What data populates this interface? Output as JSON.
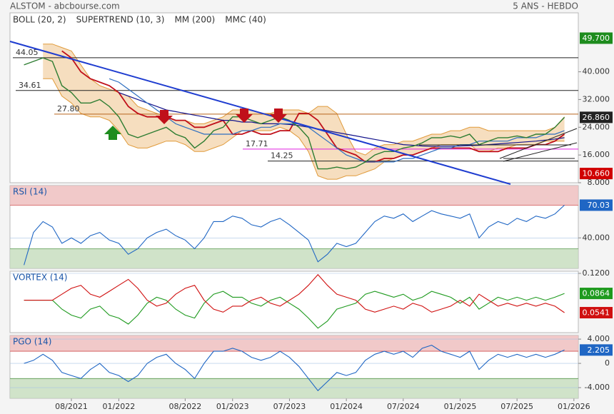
{
  "chart_data": [
    {
      "type": "line",
      "title": "ALSTOM - abcbourse.com",
      "subtitle": "5 ANS - HEBDO",
      "categories": [
        null,
        null,
        null,
        null,
        null,
        "08/2021",
        null,
        null,
        null,
        null,
        "01/2022",
        null,
        null,
        null,
        null,
        null,
        null,
        "08/2022",
        null,
        null,
        null,
        null,
        "01/2023",
        null,
        null,
        null,
        null,
        null,
        "07/2023",
        null,
        null,
        null,
        null,
        null,
        "01/2024",
        null,
        null,
        null,
        null,
        null,
        "07/2024",
        null,
        null,
        null,
        null,
        null,
        "01/2025",
        null,
        null,
        null,
        null,
        null,
        "07/2025",
        null,
        null,
        null,
        null,
        null,
        "01/2026"
      ],
      "price": {
        "color": "#2e7d32",
        "values": [
          42,
          43,
          44,
          43,
          36,
          34,
          31,
          31,
          32,
          30,
          27,
          22,
          21,
          22,
          23,
          24,
          22,
          21,
          18,
          20,
          23,
          24,
          27,
          27,
          26,
          25,
          26,
          27,
          26,
          24,
          21,
          12,
          12,
          12.5,
          12,
          12.5,
          14,
          16,
          17,
          17,
          18,
          18.5,
          19.5,
          21,
          21,
          21.5,
          21,
          22,
          19,
          20,
          21,
          21,
          21.5,
          21,
          22,
          22,
          24,
          26.86,
          null
        ]
      },
      "overlays": [
        {
          "name": "BOLL (20, 2)",
          "color": "#e09a3a",
          "fill": "#f3d3aa",
          "upper": [
            null,
            null,
            48,
            48,
            47,
            46,
            42,
            38,
            36,
            35,
            34,
            33,
            30,
            29,
            28,
            27,
            26,
            26,
            25,
            25,
            26,
            27,
            29,
            29,
            29,
            28,
            28,
            29,
            29,
            29,
            28,
            30,
            30,
            28,
            22,
            17,
            16,
            18,
            19,
            19,
            20,
            20,
            21,
            22,
            22,
            23,
            23,
            24,
            24,
            23,
            23,
            23,
            23,
            23,
            23,
            23,
            24,
            27,
            null
          ],
          "lower": [
            null,
            null,
            38,
            38,
            33,
            31,
            28,
            27,
            27,
            26,
            23,
            19,
            18,
            18,
            19,
            20,
            20,
            19,
            17,
            17,
            18,
            19,
            21,
            23,
            23,
            23,
            23,
            24,
            23,
            21,
            17,
            10,
            9,
            9,
            10,
            10,
            11,
            12,
            14,
            15,
            16,
            16,
            17,
            18,
            19,
            19,
            19,
            19,
            17,
            17,
            18,
            18,
            19,
            19,
            19,
            20,
            20,
            20,
            null
          ]
        },
        {
          "name": "SUPERTREND (10, 3)",
          "color": "#c0101a",
          "values": [
            null,
            null,
            null,
            null,
            46,
            44,
            40,
            38,
            37,
            36,
            34,
            30,
            28,
            27,
            27,
            27,
            26,
            26,
            24,
            24,
            25,
            26,
            22,
            22,
            23,
            22,
            22,
            23,
            23,
            28,
            28,
            26,
            22,
            18,
            17,
            16,
            14,
            14,
            15,
            15,
            16,
            16,
            17,
            18,
            18,
            18,
            18,
            18,
            17,
            17,
            17,
            18,
            18,
            18,
            19,
            19,
            20,
            22,
            null
          ]
        },
        {
          "name": "MM (200)",
          "color": "#14148c",
          "values": [
            null,
            null,
            null,
            null,
            null,
            null,
            null,
            null,
            null,
            null,
            34,
            33,
            32,
            31,
            30,
            29,
            28.5,
            28,
            27.5,
            27,
            26.5,
            26,
            26,
            25.5,
            25.5,
            25,
            25,
            25,
            24.8,
            24.5,
            24,
            23.5,
            23,
            22.5,
            22,
            21.5,
            21,
            20.5,
            20,
            19.5,
            19,
            18.8,
            18.6,
            18.5,
            18.5,
            18.5,
            18.6,
            18.7,
            18.8,
            19,
            19.2,
            19.4,
            19.6,
            19.8,
            20,
            20.3,
            20.6,
            21,
            null
          ]
        },
        {
          "name": "MMC (40)",
          "color": "#2f6fc0",
          "values": [
            null,
            null,
            null,
            null,
            null,
            null,
            null,
            null,
            null,
            38,
            37,
            35,
            33,
            31,
            29,
            27,
            25,
            24,
            23,
            22,
            22,
            22,
            22,
            23,
            23,
            24,
            24,
            25,
            25,
            25,
            24,
            22,
            20,
            18,
            16,
            15,
            14,
            14,
            14,
            14,
            15,
            15,
            16,
            17,
            18,
            18,
            19,
            19,
            20,
            20,
            20,
            20,
            21,
            21,
            21,
            22,
            22,
            23,
            null
          ]
        }
      ],
      "levels": [
        {
          "value": 44.05,
          "label": "44.05",
          "color": "#222222"
        },
        {
          "value": 34.61,
          "label": "34.61",
          "color": "#222222"
        },
        {
          "value": 27.8,
          "label": "27.80",
          "color": "#b8651b"
        },
        {
          "value": 17.71,
          "label": "17.71",
          "color": "#e020e0"
        },
        {
          "value": 14.25,
          "label": "14.25",
          "color": "#222222"
        }
      ],
      "markers": [
        {
          "value": 49.7,
          "label": "49.700",
          "color": "#1e8c1e"
        },
        {
          "value": 26.86,
          "label": "26.860",
          "color": "#222222"
        },
        {
          "value": 10.66,
          "label": "10.660",
          "color": "#d00000"
        }
      ],
      "ylim": [
        8,
        57
      ],
      "yticks": [
        {
          "value": 8,
          "label": "8.000"
        },
        {
          "value": 16,
          "label": "16.000"
        },
        {
          "value": 24,
          "label": "24.000"
        },
        {
          "value": 32,
          "label": "32.000"
        },
        {
          "value": 40,
          "label": "40.000"
        }
      ]
    },
    {
      "type": "line",
      "title": "RSI (14)",
      "ylim": [
        12,
        88
      ],
      "yticks": [
        {
          "value": 40,
          "label": "40.000"
        }
      ],
      "bands": {
        "upper": 70,
        "lower": 30
      },
      "series": [
        {
          "color": "#1f66c4",
          "values": [
            15,
            45,
            55,
            50,
            35,
            40,
            35,
            42,
            45,
            38,
            35,
            25,
            30,
            40,
            45,
            48,
            42,
            38,
            30,
            40,
            55,
            55,
            60,
            58,
            52,
            50,
            55,
            58,
            52,
            45,
            38,
            18,
            25,
            35,
            32,
            35,
            45,
            55,
            60,
            58,
            62,
            55,
            60,
            65,
            62,
            60,
            58,
            62,
            40,
            50,
            55,
            52,
            58,
            55,
            60,
            58,
            62,
            70.03,
            null
          ]
        }
      ]
    },
    {
      "type": "line",
      "title": "VORTEX (14)",
      "ylim": [
        0.0206,
        0.1236
      ],
      "yticks": [
        {
          "value": 0.12,
          "label": "0.1200"
        }
      ],
      "series": [
        {
          "color": "#1e9a1e",
          "values": [
            0.075,
            0.075,
            0.075,
            0.075,
            0.06,
            0.05,
            0.045,
            0.06,
            0.065,
            0.05,
            0.045,
            0.035,
            0.05,
            0.07,
            0.08,
            0.075,
            0.06,
            0.05,
            0.045,
            0.07,
            0.085,
            0.09,
            0.08,
            0.08,
            0.07,
            0.065,
            0.075,
            0.08,
            0.07,
            0.06,
            0.045,
            0.028,
            0.04,
            0.06,
            0.065,
            0.07,
            0.085,
            0.09,
            0.085,
            0.08,
            0.085,
            0.075,
            0.08,
            0.09,
            0.085,
            0.08,
            0.07,
            0.08,
            0.06,
            0.07,
            0.08,
            0.075,
            0.08,
            0.075,
            0.08,
            0.075,
            0.08,
            0.0864,
            null
          ]
        },
        {
          "color": "#d01010",
          "values": [
            0.075,
            0.075,
            0.075,
            0.075,
            0.085,
            0.095,
            0.1,
            0.085,
            0.08,
            0.09,
            0.1,
            0.11,
            0.095,
            0.075,
            0.065,
            0.07,
            0.085,
            0.095,
            0.1,
            0.075,
            0.06,
            0.055,
            0.065,
            0.065,
            0.075,
            0.08,
            0.07,
            0.065,
            0.075,
            0.085,
            0.1,
            0.118,
            0.1,
            0.085,
            0.08,
            0.075,
            0.06,
            0.055,
            0.06,
            0.065,
            0.06,
            0.07,
            0.065,
            0.055,
            0.06,
            0.065,
            0.075,
            0.065,
            0.085,
            0.075,
            0.065,
            0.07,
            0.065,
            0.07,
            0.065,
            0.07,
            0.065,
            0.0541,
            null
          ]
        }
      ]
    },
    {
      "type": "line",
      "title": "PGO (14)",
      "ylim": [
        -5.76,
        4.6
      ],
      "yticks": [
        {
          "value": 4,
          "label": "4.000"
        },
        0,
        {
          "value": -4,
          "label": "-4.000"
        }
      ],
      "bands": {
        "upper": 2,
        "lower": -2.5
      },
      "series": [
        {
          "color": "#1f66c4",
          "values": [
            0,
            0.5,
            1.5,
            0.5,
            -1.5,
            -2,
            -2.5,
            -1,
            0,
            -1.5,
            -2,
            -3,
            -2,
            0,
            1,
            1.5,
            0,
            -1,
            -2.5,
            0,
            2,
            2,
            2.5,
            2,
            1,
            0.5,
            1,
            2,
            1,
            -0.5,
            -2.5,
            -4.5,
            -3,
            -1.5,
            -2,
            -1.5,
            0.5,
            1.5,
            2,
            1.5,
            2,
            1,
            2.5,
            3,
            2,
            1.5,
            1,
            2,
            -1,
            0.5,
            1.5,
            1,
            1.5,
            1,
            1.5,
            1,
            1.5,
            2.205,
            null
          ]
        }
      ]
    }
  ]
}
